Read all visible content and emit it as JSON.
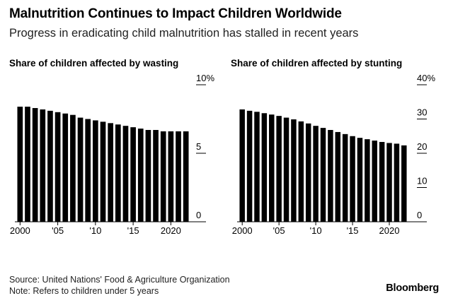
{
  "header": {
    "title": "Malnutrition Continues to Impact Children Worldwide",
    "subtitle": "Progress in eradicating child malnutrition has stalled in recent years"
  },
  "footer": {
    "source": "Source: United Nations' Food & Agriculture Organization",
    "note": "Note: Refers to children under 5 years",
    "brand": "Bloomberg"
  },
  "colors": {
    "bars": "#000000",
    "text": "#000000",
    "background": "#ffffff"
  },
  "chart_data": [
    {
      "type": "bar",
      "title": "Share of children affected by wasting",
      "x": [
        2000,
        2001,
        2002,
        2003,
        2004,
        2005,
        2006,
        2007,
        2008,
        2009,
        2010,
        2011,
        2012,
        2013,
        2014,
        2015,
        2016,
        2017,
        2018,
        2019,
        2020,
        2021,
        2022
      ],
      "values": [
        8.4,
        8.4,
        8.3,
        8.2,
        8.1,
        8.0,
        7.9,
        7.8,
        7.6,
        7.5,
        7.4,
        7.3,
        7.2,
        7.1,
        7.0,
        6.9,
        6.8,
        6.7,
        6.7,
        6.6,
        6.6,
        6.6,
        6.6
      ],
      "ylim": [
        0,
        10
      ],
      "y_ticks": [
        0,
        5,
        10
      ],
      "y_tick_labels": [
        "0",
        "5",
        "10%"
      ],
      "x_ticks": [
        2000,
        2005,
        2010,
        2015,
        2020
      ],
      "x_tick_labels": [
        "2000",
        "'05",
        "'10",
        "'15",
        "2020"
      ],
      "y_axis_side": "right",
      "grid": false
    },
    {
      "type": "bar",
      "title": "Share of children affected by stunting",
      "x": [
        2000,
        2001,
        2002,
        2003,
        2004,
        2005,
        2006,
        2007,
        2008,
        2009,
        2010,
        2011,
        2012,
        2013,
        2014,
        2015,
        2016,
        2017,
        2018,
        2019,
        2020,
        2021,
        2022
      ],
      "values": [
        32.8,
        32.4,
        32.1,
        31.7,
        31.3,
        30.9,
        30.4,
        29.9,
        29.3,
        28.7,
        28.0,
        27.4,
        26.8,
        26.2,
        25.6,
        25.0,
        24.5,
        24.1,
        23.7,
        23.3,
        23.0,
        22.8,
        22.3
      ],
      "ylim": [
        0,
        40
      ],
      "y_ticks": [
        0,
        10,
        20,
        30,
        40
      ],
      "y_tick_labels": [
        "0",
        "10",
        "20",
        "30",
        "40%"
      ],
      "x_ticks": [
        2000,
        2005,
        2010,
        2015,
        2020
      ],
      "x_tick_labels": [
        "2000",
        "'05",
        "'10",
        "'15",
        "2020"
      ],
      "y_axis_side": "right",
      "grid": false
    }
  ]
}
